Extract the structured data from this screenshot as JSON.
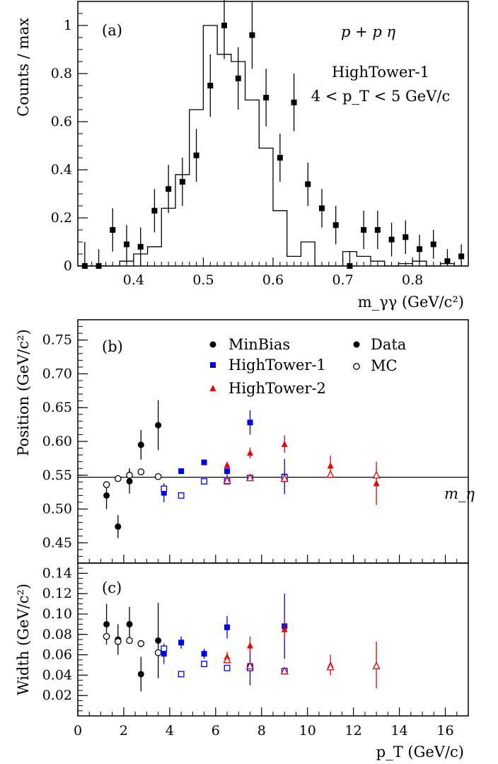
{
  "chart_data": [
    {
      "type": "histogram",
      "panel_label": "(a)",
      "annotations": {
        "reaction": "p + p   η",
        "trigger": "HighTower-1",
        "pt_range": "4 < p_T < 5 GeV/c"
      },
      "ylabel": "Counts / max",
      "xlabel": "m_γγ (GeV/c²)",
      "xlim": [
        0.32,
        0.88
      ],
      "ylim": [
        0,
        1.1
      ],
      "x_ticks": [
        "0.4",
        "0.5",
        "0.6",
        "0.7",
        "0.8"
      ],
      "y_ticks": [
        "0",
        "0.2",
        "0.4",
        "0.6",
        "0.8",
        "1"
      ],
      "grid": false,
      "series": [
        {
          "kind": "data-points",
          "marker": "filled-square",
          "points": [
            {
              "x": 0.33,
              "y": 0.0,
              "err": 0.1
            },
            {
              "x": 0.35,
              "y": 0.0,
              "err": 0.07
            },
            {
              "x": 0.37,
              "y": 0.15,
              "err": 0.09
            },
            {
              "x": 0.39,
              "y": 0.09,
              "err": 0.08
            },
            {
              "x": 0.41,
              "y": 0.08,
              "err": 0.08
            },
            {
              "x": 0.43,
              "y": 0.23,
              "err": 0.09
            },
            {
              "x": 0.45,
              "y": 0.32,
              "err": 0.1
            },
            {
              "x": 0.47,
              "y": 0.35,
              "err": 0.1
            },
            {
              "x": 0.49,
              "y": 0.46,
              "err": 0.11
            },
            {
              "x": 0.51,
              "y": 0.75,
              "err": 0.13
            },
            {
              "x": 0.53,
              "y": 1.0,
              "err": 0.14
            },
            {
              "x": 0.55,
              "y": 0.78,
              "err": 0.13
            },
            {
              "x": 0.57,
              "y": 0.96,
              "err": 0.14
            },
            {
              "x": 0.59,
              "y": 0.7,
              "err": 0.12
            },
            {
              "x": 0.61,
              "y": 0.45,
              "err": 0.1
            },
            {
              "x": 0.63,
              "y": 0.68,
              "err": 0.12
            },
            {
              "x": 0.65,
              "y": 0.34,
              "err": 0.09
            },
            {
              "x": 0.67,
              "y": 0.24,
              "err": 0.08
            },
            {
              "x": 0.69,
              "y": 0.17,
              "err": 0.08
            },
            {
              "x": 0.71,
              "y": 0.0,
              "err": 0.06
            },
            {
              "x": 0.73,
              "y": 0.15,
              "err": 0.08
            },
            {
              "x": 0.75,
              "y": 0.15,
              "err": 0.08
            },
            {
              "x": 0.77,
              "y": 0.11,
              "err": 0.07
            },
            {
              "x": 0.79,
              "y": 0.12,
              "err": 0.07
            },
            {
              "x": 0.81,
              "y": 0.07,
              "err": 0.06
            },
            {
              "x": 0.83,
              "y": 0.09,
              "err": 0.06
            },
            {
              "x": 0.85,
              "y": 0.02,
              "err": 0.05
            },
            {
              "x": 0.87,
              "y": 0.04,
              "err": 0.05
            }
          ]
        },
        {
          "kind": "step-histogram",
          "bin_edges": [
            0.32,
            0.34,
            0.36,
            0.38,
            0.4,
            0.42,
            0.44,
            0.46,
            0.48,
            0.5,
            0.52,
            0.54,
            0.56,
            0.58,
            0.6,
            0.62,
            0.64,
            0.66,
            0.68,
            0.7,
            0.72,
            0.74,
            0.76,
            0.78,
            0.8,
            0.82,
            0.84,
            0.86,
            0.88
          ],
          "values": [
            0.0,
            0.0,
            0.0,
            0.02,
            0.05,
            0.08,
            0.24,
            0.38,
            0.65,
            1.0,
            0.88,
            0.85,
            0.69,
            0.49,
            0.23,
            0.04,
            0.1,
            0.0,
            0.0,
            0.06,
            0.04,
            0.02,
            0.0,
            0.01,
            0.02,
            0.0,
            0.01,
            0.0
          ]
        }
      ]
    },
    {
      "type": "scatter",
      "panel_label": "(b)",
      "ylabel": "Position (GeV/c²)",
      "xlim": [
        0,
        17
      ],
      "ylim": [
        0.42,
        0.78
      ],
      "y_ticks": [
        "0.45",
        "0.50",
        "0.55",
        "0.60",
        "0.65",
        "0.70",
        "0.75"
      ],
      "reference_line": {
        "y": 0.547,
        "label": "m_η"
      },
      "legend": [
        {
          "label": "MinBias",
          "marker": "filled-circle",
          "color": "#000000"
        },
        {
          "label": "HighTower-1",
          "marker": "filled-square",
          "color": "#0000ee"
        },
        {
          "label": "HighTower-2",
          "marker": "filled-triangle",
          "color": "#ee0000"
        },
        {
          "label": "Data",
          "marker": "filled-circle",
          "color": "#000000"
        },
        {
          "label": "MC",
          "marker": "open-circle",
          "color": "#000000"
        }
      ],
      "series": [
        {
          "name": "MinBias Data",
          "marker": "filled-circle",
          "color": "#000000",
          "points": [
            {
              "x": 1.25,
              "y": 0.52,
              "err": 0.02
            },
            {
              "x": 1.75,
              "y": 0.474,
              "err": 0.017
            },
            {
              "x": 2.25,
              "y": 0.541,
              "err": 0.018
            },
            {
              "x": 2.75,
              "y": 0.595,
              "err": 0.022
            },
            {
              "x": 3.5,
              "y": 0.624,
              "err": 0.037
            }
          ]
        },
        {
          "name": "MinBias MC",
          "marker": "open-circle",
          "color": "#000000",
          "points": [
            {
              "x": 1.25,
              "y": 0.536,
              "err": 0.004
            },
            {
              "x": 1.75,
              "y": 0.545,
              "err": 0
            },
            {
              "x": 2.25,
              "y": 0.55,
              "err": 0.01
            },
            {
              "x": 2.75,
              "y": 0.555,
              "err": 0
            },
            {
              "x": 3.5,
              "y": 0.548,
              "err": 0
            }
          ]
        },
        {
          "name": "HighTower-1 Data",
          "marker": "filled-square",
          "color": "#0000ee",
          "points": [
            {
              "x": 3.75,
              "y": 0.524,
              "err": 0.014
            },
            {
              "x": 4.5,
              "y": 0.556,
              "err": 0.004
            },
            {
              "x": 5.5,
              "y": 0.569,
              "err": 0.004
            },
            {
              "x": 6.5,
              "y": 0.556,
              "err": 0.008
            },
            {
              "x": 7.5,
              "y": 0.628,
              "err": 0.018
            },
            {
              "x": 9.0,
              "y": 0.548,
              "err": 0.026
            }
          ]
        },
        {
          "name": "HighTower-1 MC",
          "marker": "open-square",
          "color": "#0000ee",
          "points": [
            {
              "x": 3.75,
              "y": 0.53,
              "err": 0
            },
            {
              "x": 4.5,
              "y": 0.52,
              "err": 0
            },
            {
              "x": 5.5,
              "y": 0.541,
              "err": 0
            },
            {
              "x": 6.5,
              "y": 0.541,
              "err": 0
            },
            {
              "x": 7.5,
              "y": 0.546,
              "err": 0
            },
            {
              "x": 9.0,
              "y": 0.547,
              "err": 0
            }
          ]
        },
        {
          "name": "HighTower-2 Data",
          "marker": "filled-triangle",
          "color": "#ee0000",
          "points": [
            {
              "x": 6.5,
              "y": 0.565,
              "err": 0.005
            },
            {
              "x": 7.5,
              "y": 0.583,
              "err": 0.008
            },
            {
              "x": 9.0,
              "y": 0.596,
              "err": 0.013
            },
            {
              "x": 11.0,
              "y": 0.564,
              "err": 0.015
            },
            {
              "x": 13.0,
              "y": 0.538,
              "err": 0.032
            }
          ]
        },
        {
          "name": "HighTower-2 MC",
          "marker": "open-triangle",
          "color": "#ee0000",
          "points": [
            {
              "x": 6.5,
              "y": 0.542,
              "err": 0
            },
            {
              "x": 7.5,
              "y": 0.546,
              "err": 0
            },
            {
              "x": 9.0,
              "y": 0.545,
              "err": 0
            },
            {
              "x": 11.0,
              "y": 0.551,
              "err": 0
            },
            {
              "x": 13.0,
              "y": 0.55,
              "err": 0
            }
          ]
        }
      ]
    },
    {
      "type": "scatter",
      "panel_label": "(c)",
      "ylabel": "Width (GeV/c²)",
      "xlabel": "p_T (GeV/c)",
      "xlim": [
        0,
        17
      ],
      "ylim": [
        0,
        0.15
      ],
      "x_ticks": [
        "0",
        "2",
        "4",
        "6",
        "8",
        "10",
        "12",
        "14",
        "16"
      ],
      "y_ticks": [
        "0.02",
        "0.04",
        "0.06",
        "0.08",
        "0.10",
        "0.12",
        "0.14"
      ],
      "series": [
        {
          "name": "MinBias Data",
          "marker": "filled-circle",
          "color": "#000000",
          "points": [
            {
              "x": 1.25,
              "y": 0.09,
              "err": 0.02
            },
            {
              "x": 1.75,
              "y": 0.075,
              "err": 0.015
            },
            {
              "x": 2.25,
              "y": 0.09,
              "err": 0.017
            },
            {
              "x": 2.75,
              "y": 0.041,
              "err": 0.017
            },
            {
              "x": 3.5,
              "y": 0.074,
              "err": 0.037
            }
          ]
        },
        {
          "name": "MinBias MC",
          "marker": "open-circle",
          "color": "#000000",
          "points": [
            {
              "x": 1.25,
              "y": 0.078,
              "err": 0
            },
            {
              "x": 1.75,
              "y": 0.073,
              "err": 0
            },
            {
              "x": 2.25,
              "y": 0.074,
              "err": 0
            },
            {
              "x": 2.75,
              "y": 0.071,
              "err": 0
            },
            {
              "x": 3.5,
              "y": 0.062,
              "err": 0
            }
          ]
        },
        {
          "name": "HighTower-1 Data",
          "marker": "filled-square",
          "color": "#0000ee",
          "points": [
            {
              "x": 3.75,
              "y": 0.061,
              "err": 0.01
            },
            {
              "x": 4.5,
              "y": 0.072,
              "err": 0.006
            },
            {
              "x": 5.5,
              "y": 0.061,
              "err": 0.005
            },
            {
              "x": 6.5,
              "y": 0.087,
              "err": 0.011
            },
            {
              "x": 7.5,
              "y": 0.049,
              "err": 0.019
            },
            {
              "x": 9.0,
              "y": 0.088,
              "err": 0.032
            }
          ]
        },
        {
          "name": "HighTower-1 MC",
          "marker": "open-square",
          "color": "#0000ee",
          "points": [
            {
              "x": 3.75,
              "y": 0.066,
              "err": 0
            },
            {
              "x": 4.5,
              "y": 0.041,
              "err": 0
            },
            {
              "x": 5.5,
              "y": 0.051,
              "err": 0
            },
            {
              "x": 6.5,
              "y": 0.047,
              "err": 0
            },
            {
              "x": 7.5,
              "y": 0.047,
              "err": 0
            },
            {
              "x": 9.0,
              "y": 0.044,
              "err": 0
            }
          ]
        },
        {
          "name": "HighTower-2 Data",
          "marker": "filled-triangle",
          "color": "#ee0000",
          "points": [
            {
              "x": 6.5,
              "y": 0.058,
              "err": 0.005
            },
            {
              "x": 7.5,
              "y": 0.069,
              "err": 0.009
            },
            {
              "x": 9.0,
              "y": 0.085,
              "err": 0.01
            },
            {
              "x": 11.0,
              "y": 0.05,
              "err": 0.01
            },
            {
              "x": 13.0,
              "y": 0.05,
              "err": 0.023
            }
          ]
        },
        {
          "name": "HighTower-2 MC",
          "marker": "open-triangle",
          "color": "#ee0000",
          "points": [
            {
              "x": 6.5,
              "y": 0.055,
              "err": 0
            },
            {
              "x": 7.5,
              "y": 0.049,
              "err": 0
            },
            {
              "x": 9.0,
              "y": 0.044,
              "err": 0
            },
            {
              "x": 11.0,
              "y": 0.048,
              "err": 0
            },
            {
              "x": 13.0,
              "y": 0.049,
              "err": 0
            }
          ]
        }
      ]
    }
  ]
}
